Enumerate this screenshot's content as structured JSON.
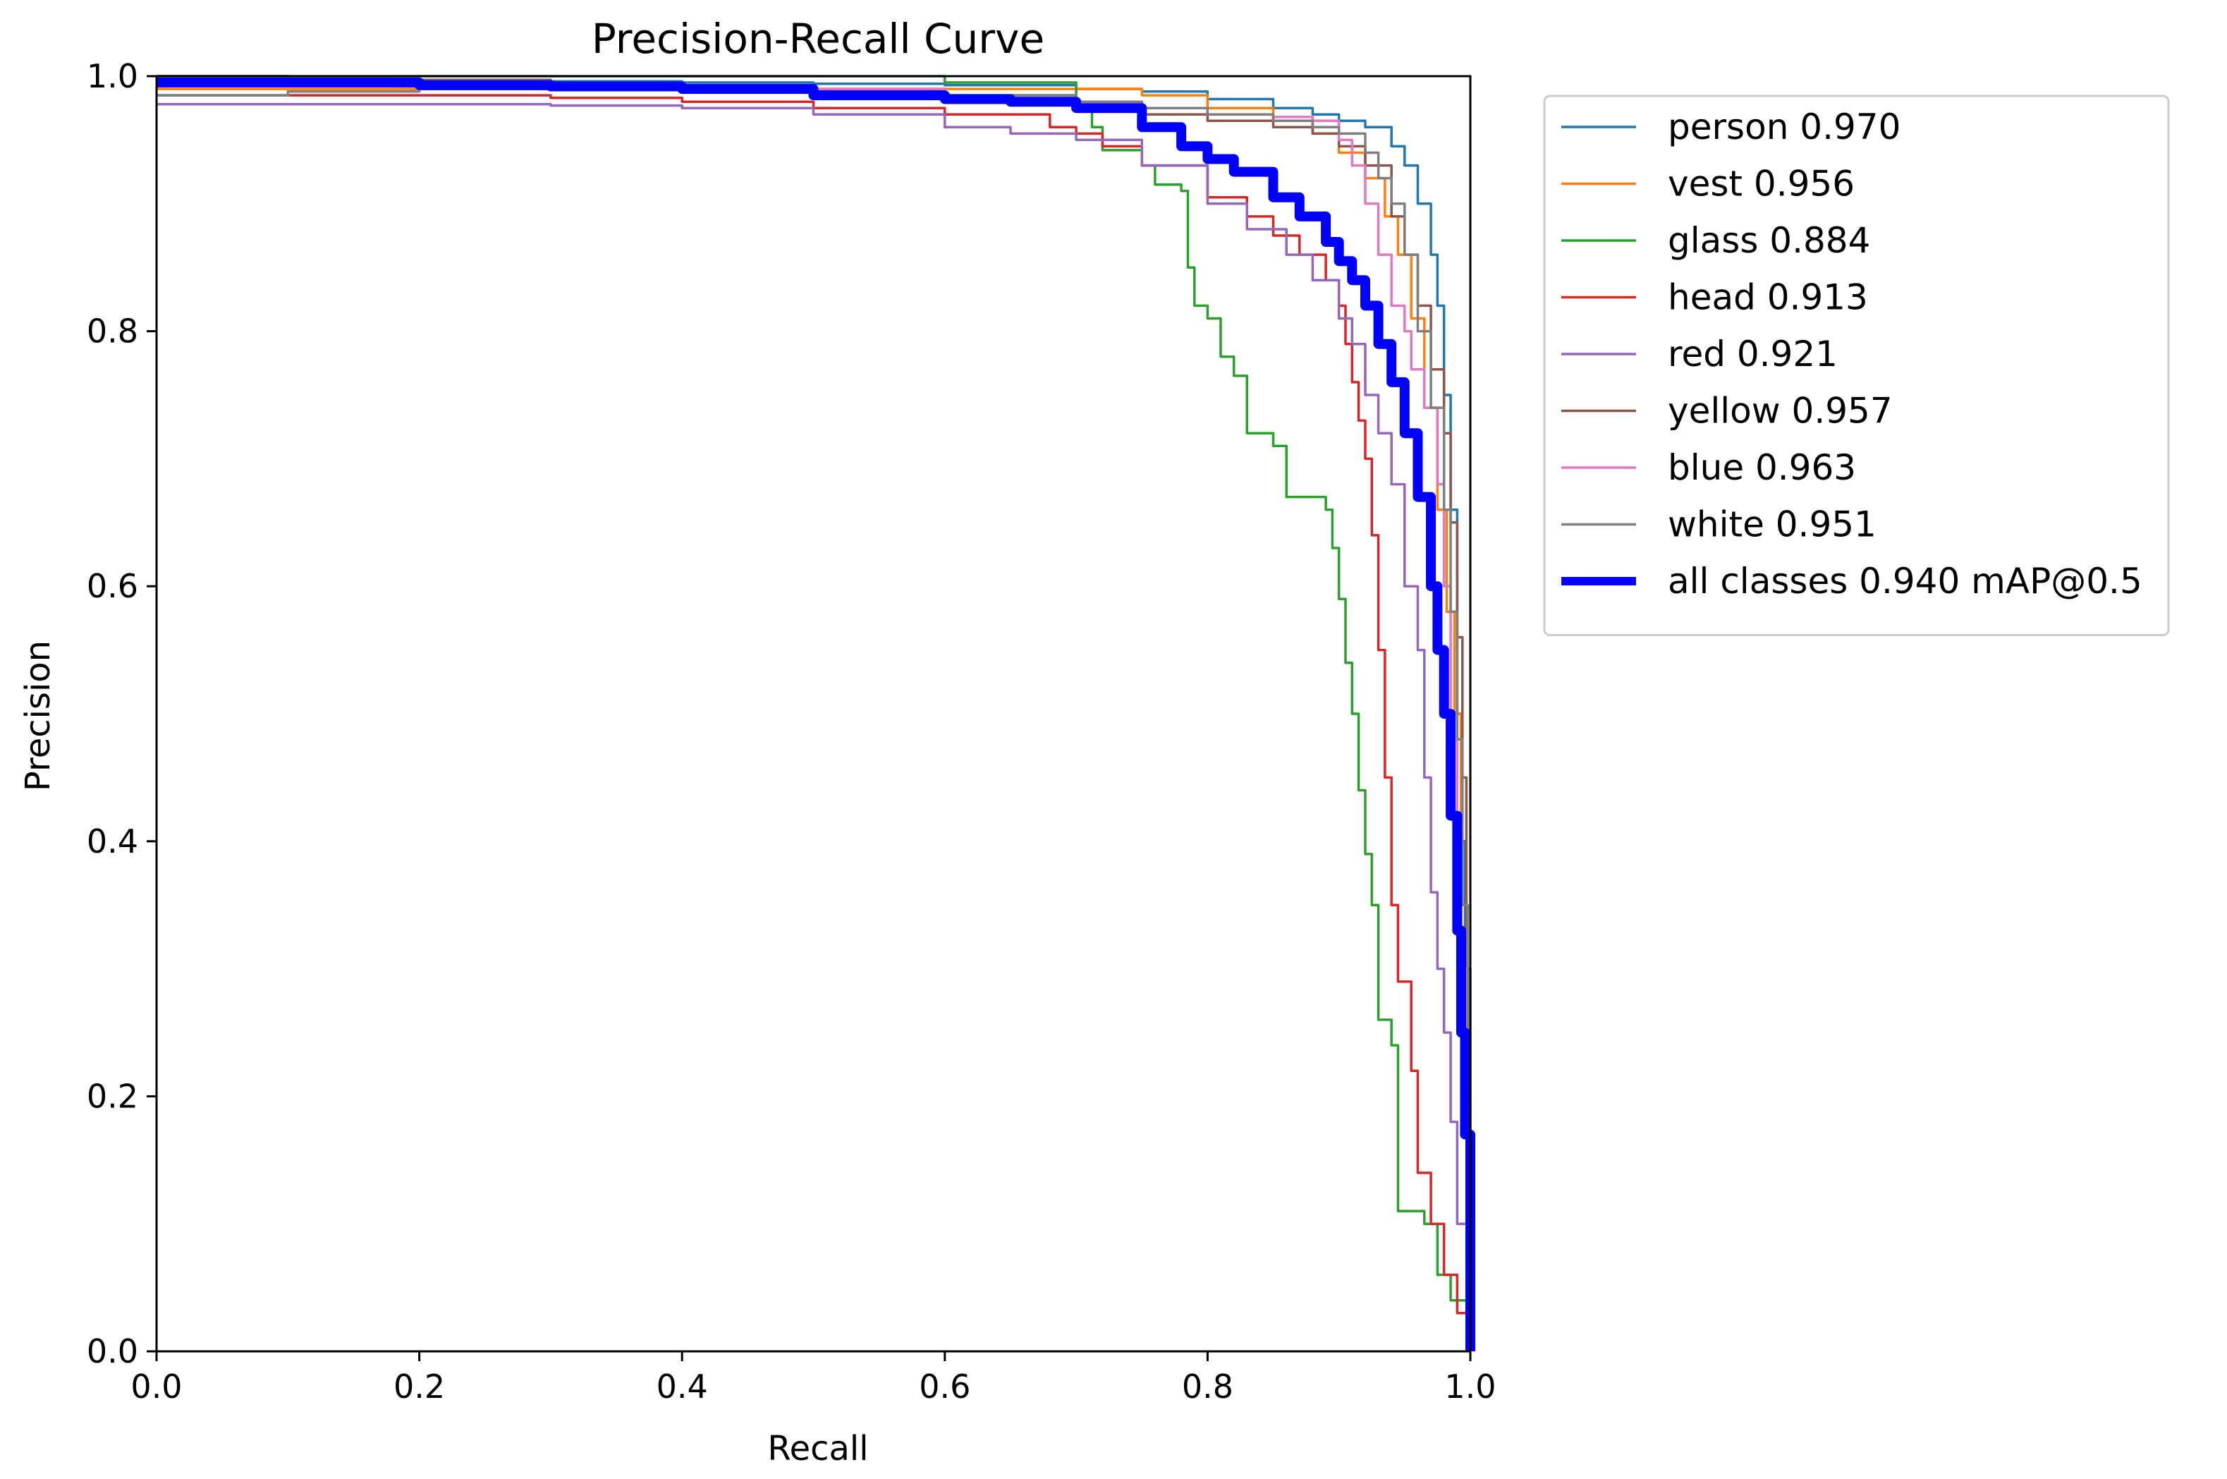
{
  "chart_data": {
    "type": "line",
    "title": "Precision-Recall Curve",
    "xlabel": "Recall",
    "ylabel": "Precision",
    "xlim": [
      0,
      1
    ],
    "ylim": [
      0,
      1
    ],
    "xticks": [
      "0.0",
      "0.2",
      "0.4",
      "0.6",
      "0.8",
      "1.0"
    ],
    "yticks": [
      "0.0",
      "0.2",
      "0.4",
      "0.6",
      "0.8",
      "1.0"
    ],
    "grid": false,
    "legend_position": "outside-right-top",
    "series": [
      {
        "name": "person 0.970",
        "color": "#1f77b4",
        "points": [
          [
            0,
            1.0
          ],
          [
            0.1,
            0.998
          ],
          [
            0.2,
            0.997
          ],
          [
            0.3,
            0.996
          ],
          [
            0.4,
            0.995
          ],
          [
            0.5,
            0.994
          ],
          [
            0.6,
            0.993
          ],
          [
            0.7,
            0.99
          ],
          [
            0.75,
            0.988
          ],
          [
            0.8,
            0.982
          ],
          [
            0.85,
            0.975
          ],
          [
            0.88,
            0.97
          ],
          [
            0.9,
            0.965
          ],
          [
            0.92,
            0.96
          ],
          [
            0.94,
            0.945
          ],
          [
            0.95,
            0.93
          ],
          [
            0.96,
            0.9
          ],
          [
            0.97,
            0.86
          ],
          [
            0.975,
            0.82
          ],
          [
            0.98,
            0.75
          ],
          [
            0.985,
            0.66
          ],
          [
            0.99,
            0.5
          ],
          [
            0.993,
            0.4
          ],
          [
            0.996,
            0.25
          ],
          [
            1.0,
            0.0
          ]
        ]
      },
      {
        "name": "vest 0.956",
        "color": "#ff7f0e",
        "points": [
          [
            0,
            0.99
          ],
          [
            0.1,
            0.99
          ],
          [
            0.2,
            0.99
          ],
          [
            0.3,
            0.99
          ],
          [
            0.4,
            0.99
          ],
          [
            0.5,
            0.99
          ],
          [
            0.6,
            0.99
          ],
          [
            0.7,
            0.99
          ],
          [
            0.75,
            0.985
          ],
          [
            0.8,
            0.975
          ],
          [
            0.85,
            0.965
          ],
          [
            0.88,
            0.955
          ],
          [
            0.9,
            0.94
          ],
          [
            0.92,
            0.92
          ],
          [
            0.935,
            0.89
          ],
          [
            0.945,
            0.86
          ],
          [
            0.955,
            0.81
          ],
          [
            0.965,
            0.74
          ],
          [
            0.975,
            0.66
          ],
          [
            0.982,
            0.58
          ],
          [
            0.988,
            0.5
          ],
          [
            0.993,
            0.35
          ],
          [
            0.997,
            0.2
          ],
          [
            1.0,
            0.0
          ]
        ]
      },
      {
        "name": "glass 0.884",
        "color": "#2ca02c",
        "points": [
          [
            0,
            1.0
          ],
          [
            0.2,
            1.0
          ],
          [
            0.4,
            1.0
          ],
          [
            0.6,
            0.995
          ],
          [
            0.7,
            0.975
          ],
          [
            0.712,
            0.96
          ],
          [
            0.72,
            0.942
          ],
          [
            0.75,
            0.93
          ],
          [
            0.76,
            0.915
          ],
          [
            0.78,
            0.91
          ],
          [
            0.785,
            0.85
          ],
          [
            0.79,
            0.82
          ],
          [
            0.8,
            0.81
          ],
          [
            0.81,
            0.78
          ],
          [
            0.82,
            0.765
          ],
          [
            0.83,
            0.72
          ],
          [
            0.85,
            0.71
          ],
          [
            0.86,
            0.67
          ],
          [
            0.89,
            0.66
          ],
          [
            0.895,
            0.63
          ],
          [
            0.9,
            0.59
          ],
          [
            0.905,
            0.54
          ],
          [
            0.91,
            0.5
          ],
          [
            0.915,
            0.44
          ],
          [
            0.92,
            0.39
          ],
          [
            0.925,
            0.35
          ],
          [
            0.93,
            0.26
          ],
          [
            0.94,
            0.24
          ],
          [
            0.945,
            0.11
          ],
          [
            0.965,
            0.1
          ],
          [
            0.975,
            0.06
          ],
          [
            0.985,
            0.04
          ],
          [
            1.0,
            0.0
          ]
        ]
      },
      {
        "name": "head 0.913",
        "color": "#d62728",
        "points": [
          [
            0,
            0.985
          ],
          [
            0.1,
            0.985
          ],
          [
            0.2,
            0.985
          ],
          [
            0.3,
            0.983
          ],
          [
            0.4,
            0.98
          ],
          [
            0.5,
            0.975
          ],
          [
            0.6,
            0.97
          ],
          [
            0.68,
            0.96
          ],
          [
            0.7,
            0.955
          ],
          [
            0.72,
            0.945
          ],
          [
            0.75,
            0.93
          ],
          [
            0.8,
            0.905
          ],
          [
            0.83,
            0.89
          ],
          [
            0.85,
            0.875
          ],
          [
            0.87,
            0.86
          ],
          [
            0.89,
            0.84
          ],
          [
            0.9,
            0.82
          ],
          [
            0.905,
            0.79
          ],
          [
            0.91,
            0.76
          ],
          [
            0.915,
            0.73
          ],
          [
            0.92,
            0.7
          ],
          [
            0.925,
            0.64
          ],
          [
            0.93,
            0.55
          ],
          [
            0.935,
            0.45
          ],
          [
            0.94,
            0.35
          ],
          [
            0.945,
            0.29
          ],
          [
            0.955,
            0.22
          ],
          [
            0.96,
            0.14
          ],
          [
            0.97,
            0.1
          ],
          [
            0.98,
            0.06
          ],
          [
            0.99,
            0.03
          ],
          [
            1.0,
            0.0
          ]
        ]
      },
      {
        "name": "red 0.921",
        "color": "#9467bd",
        "points": [
          [
            0,
            0.978
          ],
          [
            0.1,
            0.978
          ],
          [
            0.2,
            0.978
          ],
          [
            0.3,
            0.977
          ],
          [
            0.4,
            0.975
          ],
          [
            0.5,
            0.97
          ],
          [
            0.6,
            0.96
          ],
          [
            0.65,
            0.955
          ],
          [
            0.7,
            0.95
          ],
          [
            0.75,
            0.93
          ],
          [
            0.8,
            0.9
          ],
          [
            0.83,
            0.88
          ],
          [
            0.86,
            0.86
          ],
          [
            0.88,
            0.84
          ],
          [
            0.9,
            0.81
          ],
          [
            0.91,
            0.79
          ],
          [
            0.92,
            0.75
          ],
          [
            0.93,
            0.72
          ],
          [
            0.94,
            0.68
          ],
          [
            0.95,
            0.6
          ],
          [
            0.96,
            0.55
          ],
          [
            0.965,
            0.45
          ],
          [
            0.97,
            0.36
          ],
          [
            0.975,
            0.3
          ],
          [
            0.98,
            0.25
          ],
          [
            0.985,
            0.18
          ],
          [
            0.99,
            0.1
          ],
          [
            1.0,
            0.0
          ]
        ]
      },
      {
        "name": "yellow 0.957",
        "color": "#8c564b",
        "points": [
          [
            0,
            1.0
          ],
          [
            0.1,
            0.998
          ],
          [
            0.2,
            0.997
          ],
          [
            0.3,
            0.995
          ],
          [
            0.4,
            0.993
          ],
          [
            0.5,
            0.99
          ],
          [
            0.6,
            0.985
          ],
          [
            0.7,
            0.98
          ],
          [
            0.75,
            0.97
          ],
          [
            0.8,
            0.965
          ],
          [
            0.85,
            0.96
          ],
          [
            0.88,
            0.955
          ],
          [
            0.9,
            0.945
          ],
          [
            0.92,
            0.93
          ],
          [
            0.94,
            0.89
          ],
          [
            0.95,
            0.86
          ],
          [
            0.96,
            0.82
          ],
          [
            0.97,
            0.77
          ],
          [
            0.98,
            0.72
          ],
          [
            0.985,
            0.65
          ],
          [
            0.99,
            0.56
          ],
          [
            0.994,
            0.45
          ],
          [
            0.997,
            0.3
          ],
          [
            1.0,
            0.0
          ]
        ]
      },
      {
        "name": "blue 0.963",
        "color": "#e377c2",
        "points": [
          [
            0,
            0.995
          ],
          [
            0.1,
            0.995
          ],
          [
            0.2,
            0.995
          ],
          [
            0.3,
            0.994
          ],
          [
            0.4,
            0.993
          ],
          [
            0.5,
            0.99
          ],
          [
            0.6,
            0.985
          ],
          [
            0.7,
            0.98
          ],
          [
            0.75,
            0.975
          ],
          [
            0.8,
            0.97
          ],
          [
            0.85,
            0.968
          ],
          [
            0.88,
            0.965
          ],
          [
            0.9,
            0.95
          ],
          [
            0.91,
            0.93
          ],
          [
            0.92,
            0.9
          ],
          [
            0.93,
            0.86
          ],
          [
            0.94,
            0.82
          ],
          [
            0.95,
            0.8
          ],
          [
            0.955,
            0.77
          ],
          [
            0.965,
            0.74
          ],
          [
            0.975,
            0.68
          ],
          [
            0.98,
            0.6
          ],
          [
            0.985,
            0.5
          ],
          [
            0.99,
            0.4
          ],
          [
            0.993,
            0.3
          ],
          [
            0.997,
            0.2
          ],
          [
            1.0,
            0.0
          ]
        ]
      },
      {
        "name": "white 0.951",
        "color": "#7f7f7f",
        "points": [
          [
            0,
            0.985
          ],
          [
            0.1,
            0.988
          ],
          [
            0.2,
            0.99
          ],
          [
            0.3,
            0.99
          ],
          [
            0.4,
            0.99
          ],
          [
            0.5,
            0.988
          ],
          [
            0.6,
            0.985
          ],
          [
            0.7,
            0.98
          ],
          [
            0.75,
            0.975
          ],
          [
            0.8,
            0.97
          ],
          [
            0.85,
            0.965
          ],
          [
            0.88,
            0.96
          ],
          [
            0.9,
            0.955
          ],
          [
            0.92,
            0.94
          ],
          [
            0.93,
            0.92
          ],
          [
            0.94,
            0.9
          ],
          [
            0.95,
            0.86
          ],
          [
            0.96,
            0.8
          ],
          [
            0.97,
            0.74
          ],
          [
            0.98,
            0.66
          ],
          [
            0.985,
            0.58
          ],
          [
            0.99,
            0.48
          ],
          [
            0.994,
            0.35
          ],
          [
            0.998,
            0.15
          ],
          [
            1.0,
            0.0
          ]
        ]
      },
      {
        "name": "all classes 0.940 mAP@0.5",
        "color": "#0000ff",
        "width": 14,
        "points": [
          [
            0,
            0.995
          ],
          [
            0.1,
            0.995
          ],
          [
            0.2,
            0.993
          ],
          [
            0.3,
            0.992
          ],
          [
            0.4,
            0.99
          ],
          [
            0.5,
            0.985
          ],
          [
            0.6,
            0.982
          ],
          [
            0.65,
            0.98
          ],
          [
            0.7,
            0.975
          ],
          [
            0.75,
            0.96
          ],
          [
            0.78,
            0.945
          ],
          [
            0.8,
            0.935
          ],
          [
            0.82,
            0.925
          ],
          [
            0.85,
            0.905
          ],
          [
            0.87,
            0.89
          ],
          [
            0.89,
            0.87
          ],
          [
            0.9,
            0.855
          ],
          [
            0.91,
            0.84
          ],
          [
            0.92,
            0.82
          ],
          [
            0.93,
            0.79
          ],
          [
            0.94,
            0.76
          ],
          [
            0.95,
            0.72
          ],
          [
            0.96,
            0.67
          ],
          [
            0.97,
            0.6
          ],
          [
            0.975,
            0.55
          ],
          [
            0.98,
            0.5
          ],
          [
            0.985,
            0.42
          ],
          [
            0.99,
            0.33
          ],
          [
            0.993,
            0.25
          ],
          [
            0.996,
            0.17
          ],
          [
            1.0,
            0.0
          ]
        ]
      }
    ]
  }
}
